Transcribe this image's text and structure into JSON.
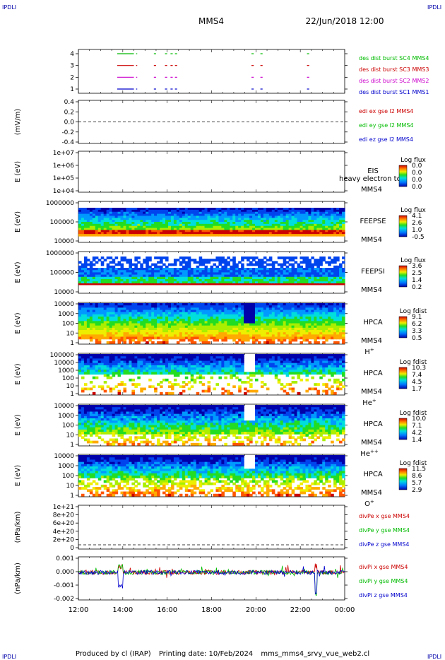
{
  "header": {
    "mission": "MMS4",
    "datetime": "22/Jun/2018 12:00",
    "corner_label": "IPDLI"
  },
  "footer": {
    "produced": "Produced by cl (IRAP)",
    "printing": "Printing date: 10/Feb/2024",
    "file": "mms_mms4_srvy_vue_web2.cl"
  },
  "chart_data": {
    "type": "multi-panel-timeseries",
    "x_ticks": [
      "12:00",
      "14:00",
      "16:00",
      "18:00",
      "20:00",
      "22:00",
      "00:00"
    ],
    "x_range_hours": [
      12,
      24
    ],
    "panels": [
      {
        "id": "burst",
        "type": "line",
        "ylabel": "",
        "yticks": [
          "4",
          "3",
          "2",
          "1"
        ],
        "series": [
          {
            "name": "des dist burst SC1 MMS1",
            "color": "#0000cc",
            "y": 1,
            "segments": [
              [
                13.75,
                14.5
              ],
              [
                14.6,
                14.65
              ],
              [
                15.4,
                15.5
              ],
              [
                15.9,
                16.0
              ],
              [
                16.15,
                16.25
              ],
              [
                16.35,
                16.45
              ],
              [
                19.8,
                19.9
              ],
              [
                20.2,
                20.3
              ],
              [
                22.3,
                22.4
              ]
            ]
          },
          {
            "name": "des dist burst SC2 MMS2",
            "color": "#cc00cc",
            "y": 2,
            "segments": [
              [
                13.75,
                14.5
              ],
              [
                14.6,
                14.65
              ],
              [
                15.4,
                15.5
              ],
              [
                15.9,
                16.0
              ],
              [
                16.15,
                16.25
              ],
              [
                16.35,
                16.45
              ],
              [
                19.8,
                19.9
              ],
              [
                20.2,
                20.3
              ],
              [
                22.3,
                22.4
              ]
            ]
          },
          {
            "name": "des dist burst SC3 MMS3",
            "color": "#cc0000",
            "y": 3,
            "segments": [
              [
                13.75,
                14.5
              ],
              [
                14.6,
                14.65
              ],
              [
                15.4,
                15.5
              ],
              [
                15.9,
                16.0
              ],
              [
                16.15,
                16.25
              ],
              [
                16.35,
                16.45
              ],
              [
                19.8,
                19.9
              ],
              [
                20.2,
                20.3
              ],
              [
                22.3,
                22.4
              ]
            ]
          },
          {
            "name": "des dist burst SC4 MMS4",
            "color": "#00bb00",
            "y": 4,
            "segments": [
              [
                13.75,
                14.5
              ],
              [
                14.6,
                14.65
              ],
              [
                15.4,
                15.5
              ],
              [
                15.9,
                16.0
              ],
              [
                16.15,
                16.25
              ],
              [
                16.35,
                16.45
              ],
              [
                19.8,
                19.9
              ],
              [
                20.2,
                20.3
              ],
              [
                22.3,
                22.4
              ]
            ]
          }
        ]
      },
      {
        "id": "edi",
        "type": "line",
        "ylabel": "(mV/m)",
        "yticks": [
          "0.4",
          "0.2",
          "0.0",
          "-0.2",
          "-0.4"
        ],
        "ylim": [
          -0.5,
          0.5
        ],
        "series": [
          {
            "name": "edi ex gse l2 MMS4",
            "color": "#cc0000"
          },
          {
            "name": "edi ey gse l2 MMS4",
            "color": "#00bb00"
          },
          {
            "name": "edi ez gse l2 MMS4",
            "color": "#0000cc"
          }
        ]
      },
      {
        "id": "eis",
        "type": "spectrogram",
        "ylabel": "E (eV)",
        "yticks": [
          "1e+07",
          "1e+06",
          "1e+05",
          "1e+04"
        ],
        "instrument": "EIS",
        "extra": "heavy electron to",
        "sc": "MMS4",
        "colorbar": {
          "title": "Log flux",
          "ticks": [
            "0.0",
            "0.0",
            "0.0",
            "0.0"
          ]
        }
      },
      {
        "id": "feepse",
        "type": "spectrogram",
        "ylabel": "E (eV)",
        "yticks": [
          "1000000",
          "100000",
          "10000"
        ],
        "instrument": "FEEPSE",
        "sc": "MMS4",
        "colorbar": {
          "title": "Log flux",
          "ticks": [
            "4.1",
            "2.6",
            "1.0",
            "-0.5"
          ]
        }
      },
      {
        "id": "feepsi",
        "type": "spectrogram",
        "ylabel": "E (eV)",
        "yticks": [
          "1000000",
          "100000",
          "10000"
        ],
        "instrument": "FEEPSI",
        "sc": "MMS4",
        "colorbar": {
          "title": "Log flux",
          "ticks": [
            "3.6",
            "2.5",
            "1.4",
            "0.2"
          ]
        }
      },
      {
        "id": "hpca_h",
        "type": "spectrogram",
        "ylabel": "E (eV)",
        "yticks": [
          "10000",
          "1000",
          "100",
          "10",
          "1"
        ],
        "instrument": "HPCA",
        "sc": "MMS4",
        "species": "H",
        "charge": "+",
        "colorbar": {
          "title": "Log fdist",
          "ticks": [
            "9.1",
            "6.2",
            "3.3",
            "0.5"
          ]
        }
      },
      {
        "id": "hpca_he",
        "type": "spectrogram",
        "ylabel": "E (eV)",
        "yticks": [
          "100000",
          "10000",
          "1000",
          "100",
          "10",
          "1"
        ],
        "instrument": "HPCA",
        "sc": "MMS4",
        "species": "He",
        "charge": "+",
        "colorbar": {
          "title": "Log fdist",
          "ticks": [
            "10.3",
            "7.4",
            "4.5",
            "1.7"
          ]
        }
      },
      {
        "id": "hpca_hepp",
        "type": "spectrogram",
        "ylabel": "E (eV)",
        "yticks": [
          "10000",
          "1000",
          "100",
          "10",
          "1"
        ],
        "instrument": "HPCA",
        "sc": "MMS4",
        "species": "He",
        "charge": "++",
        "colorbar": {
          "title": "Log fdist",
          "ticks": [
            "10.0",
            "7.1",
            "4.2",
            "1.4"
          ]
        }
      },
      {
        "id": "hpca_o",
        "type": "spectrogram",
        "ylabel": "E (eV)",
        "yticks": [
          "10000",
          "1000",
          "100",
          "10",
          "1"
        ],
        "instrument": "HPCA",
        "sc": "MMS4",
        "species": "O",
        "charge": "+",
        "colorbar": {
          "title": "Log fdist",
          "ticks": [
            "11.5",
            "8.6",
            "5.7",
            "2.9"
          ]
        }
      },
      {
        "id": "divpe",
        "type": "line",
        "ylabel": "(nPa/km)",
        "yticks": [
          "1e+21",
          "8e+20",
          "6e+20",
          "4e+20",
          "2e+20",
          "0"
        ],
        "ylim": [
          0,
          1.05e+21
        ],
        "series": [
          {
            "name": "divPe x gse MMS4",
            "color": "#cc0000"
          },
          {
            "name": "divPe y gse MMS4",
            "color": "#00bb00"
          },
          {
            "name": "divPe z gse MMS4",
            "color": "#0000cc"
          }
        ]
      },
      {
        "id": "divpi",
        "type": "line",
        "ylabel": "(nPa/km)",
        "yticks": [
          "0.001",
          "0.000",
          "-0.001",
          "-0.002"
        ],
        "ylim": [
          -0.0027,
          0.0015
        ],
        "series": [
          {
            "name": "divPi x gse MMS4",
            "color": "#cc0000"
          },
          {
            "name": "divPi y gse MMS4",
            "color": "#00bb00"
          },
          {
            "name": "divPi z gse MMS4",
            "color": "#0000cc"
          }
        ]
      }
    ]
  }
}
